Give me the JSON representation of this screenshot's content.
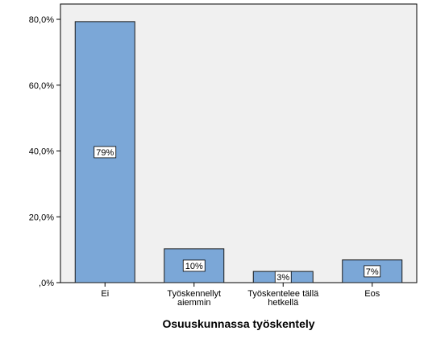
{
  "chart_data": {
    "type": "bar",
    "categories": [
      [
        "Ei"
      ],
      [
        "Työskennellyt",
        "aiemmin"
      ],
      [
        "Työskentelee tällä",
        "hetkellä"
      ],
      [
        "Eos"
      ]
    ],
    "values": [
      79.3,
      10.3,
      3.4,
      6.9
    ],
    "data_labels": [
      "79%",
      "10%",
      "3%",
      "7%"
    ],
    "y_ticks": [
      0,
      20,
      40,
      60,
      80
    ],
    "y_tick_labels": [
      ",0%",
      "20,0%",
      "40,0%",
      "60,0%",
      "80,0%"
    ],
    "ylim": [
      0,
      84
    ],
    "xlabel": "Osuuskunnassa työskentely",
    "ylabel": "",
    "title": "",
    "grid": false,
    "colors": {
      "bar_fill": "#7BA7D7",
      "bar_stroke": "#1a1a1a",
      "plot_bg": "#F0F0F0",
      "axis": "#000000",
      "label_box_fill": "#FFFFFF"
    }
  }
}
